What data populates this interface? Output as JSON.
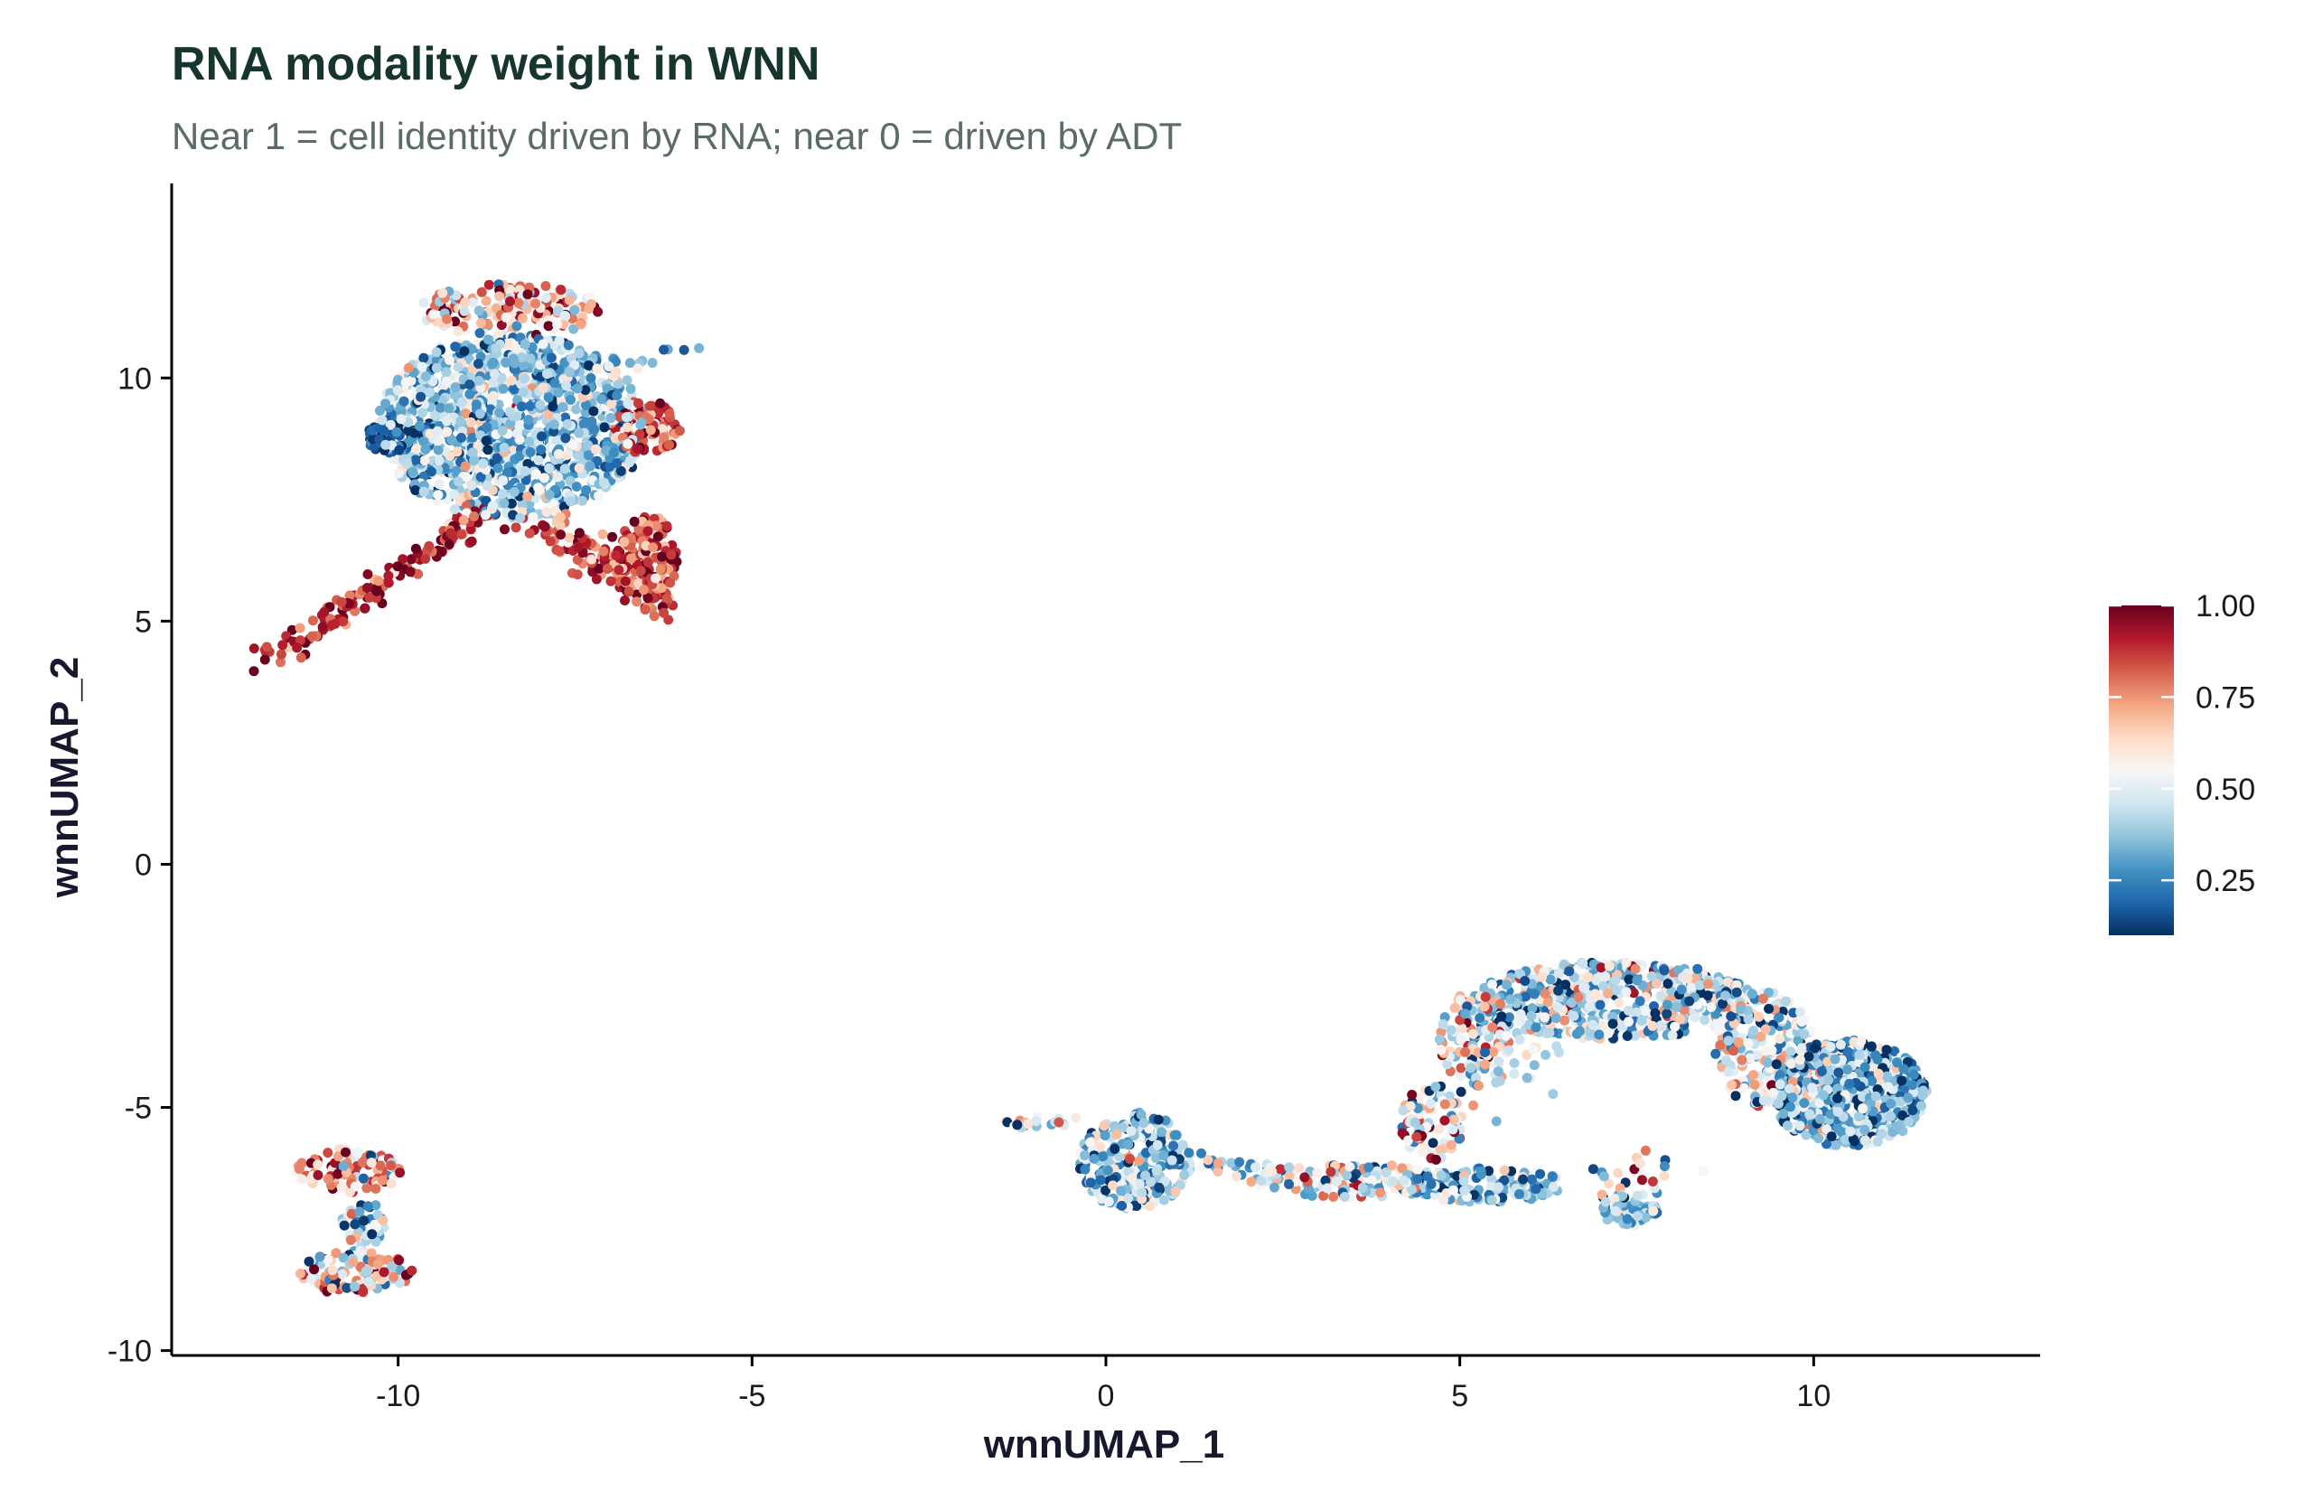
{
  "chart_data": {
    "type": "scatter",
    "title": "RNA modality weight in WNN",
    "subtitle": "Near 1 = cell identity driven by RNA; near 0 = driven by ADT",
    "xlabel": "wnnUMAP_1",
    "ylabel": "wnnUMAP_2",
    "xlim": [
      -13.2,
      13.2
    ],
    "ylim": [
      -10.1,
      14.0
    ],
    "x_ticks": [
      -10,
      -5,
      0,
      5,
      10
    ],
    "x_tick_labels": [
      "-10",
      "-5",
      "0",
      "5",
      "10"
    ],
    "y_ticks": [
      -10,
      -5,
      0,
      5,
      10
    ],
    "y_tick_labels": [
      "-10",
      "-5",
      "0",
      "5",
      "10"
    ],
    "grid": false,
    "colorbar": {
      "range": [
        0.1,
        1.0
      ],
      "ticks": [
        0.25,
        0.5,
        0.75,
        1.0
      ],
      "tick_labels": [
        "0.25",
        "0.50",
        "0.75",
        "1.00"
      ],
      "colors": [
        "#053061",
        "#2166ac",
        "#4393c3",
        "#92c5de",
        "#d1e5f0",
        "#f7f7f7",
        "#fddbc7",
        "#f4a582",
        "#d6604d",
        "#b2182b",
        "#67001f"
      ],
      "placement": "right"
    },
    "clusters": [
      {
        "cx": -8.4,
        "cy": 9.0,
        "rx": 1.9,
        "ry": 1.9,
        "w_mean": 0.38,
        "w_sd": 0.16,
        "n": 1300
      },
      {
        "cx": -10.1,
        "cy": 8.8,
        "rx": 0.35,
        "ry": 0.35,
        "w_mean": 0.18,
        "w_sd": 0.06,
        "n": 70
      },
      {
        "cx": -6.5,
        "cy": 9.0,
        "rx": 0.5,
        "ry": 0.55,
        "w_mean": 0.85,
        "w_sd": 0.12,
        "n": 110
      },
      {
        "cx": -6.5,
        "cy": 6.3,
        "rx": 0.45,
        "ry": 0.9,
        "w_mean": 0.85,
        "w_sd": 0.12,
        "n": 150
      },
      {
        "cx": -8.4,
        "cy": 11.4,
        "rx": 1.3,
        "ry": 0.55,
        "w_mean": 0.7,
        "w_sd": 0.2,
        "n": 170
      },
      {
        "cx": -10.7,
        "cy": -6.3,
        "rx": 0.75,
        "ry": 0.45,
        "w_mean": 0.7,
        "w_sd": 0.22,
        "n": 110
      },
      {
        "cx": -10.6,
        "cy": -8.4,
        "rx": 0.8,
        "ry": 0.45,
        "w_mean": 0.6,
        "w_sd": 0.25,
        "n": 110
      },
      {
        "cx": -10.5,
        "cy": -7.4,
        "rx": 0.3,
        "ry": 0.5,
        "w_mean": 0.45,
        "w_sd": 0.2,
        "n": 40
      },
      {
        "cx": 0.4,
        "cy": -6.1,
        "rx": 0.8,
        "ry": 1.0,
        "w_mean": 0.38,
        "w_sd": 0.16,
        "n": 300
      },
      {
        "cx": 3.4,
        "cy": -6.5,
        "rx": 1.4,
        "ry": 0.35,
        "w_mean": 0.5,
        "w_sd": 0.22,
        "n": 150
      },
      {
        "cx": 5.3,
        "cy": -6.6,
        "rx": 1.2,
        "ry": 0.35,
        "w_mean": 0.35,
        "w_sd": 0.16,
        "n": 150
      },
      {
        "cx": 7.4,
        "cy": -7.1,
        "rx": 0.4,
        "ry": 0.35,
        "w_mean": 0.35,
        "w_sd": 0.12,
        "n": 60
      },
      {
        "cx": 7.2,
        "cy": -2.8,
        "rx": 2.0,
        "ry": 0.8,
        "w_mean": 0.42,
        "w_sd": 0.18,
        "n": 550
      },
      {
        "cx": 10.5,
        "cy": -4.7,
        "rx": 1.1,
        "ry": 1.1,
        "w_mean": 0.35,
        "w_sd": 0.16,
        "n": 700
      },
      {
        "cx": 9.3,
        "cy": -3.8,
        "rx": 0.7,
        "ry": 1.2,
        "w_mean": 0.45,
        "w_sd": 0.2,
        "n": 200
      },
      {
        "cx": 5.2,
        "cy": -3.6,
        "rx": 0.5,
        "ry": 1.0,
        "w_mean": 0.55,
        "w_sd": 0.22,
        "n": 120
      },
      {
        "cx": 4.6,
        "cy": -5.3,
        "rx": 0.45,
        "ry": 0.8,
        "w_mean": 0.6,
        "w_sd": 0.25,
        "n": 80
      }
    ],
    "strands": [
      {
        "from": [
          -11.9,
          4.1
        ],
        "to": [
          -8.8,
          7.2
        ],
        "jitter": 0.12,
        "w_mean": 0.9,
        "w_sd": 0.1,
        "n": 150
      },
      {
        "from": [
          -8.0,
          7.0
        ],
        "to": [
          -6.1,
          5.3
        ],
        "jitter": 0.2,
        "w_mean": 0.85,
        "w_sd": 0.12,
        "n": 120
      },
      {
        "from": [
          -8.0,
          10.2
        ],
        "to": [
          -5.9,
          10.5
        ],
        "jitter": 0.08,
        "w_mean": 0.35,
        "w_sd": 0.12,
        "n": 25
      },
      {
        "from": [
          -1.6,
          -5.3
        ],
        "to": [
          -0.4,
          -5.3
        ],
        "jitter": 0.08,
        "w_mean": 0.5,
        "w_sd": 0.2,
        "n": 20
      },
      {
        "from": [
          1.2,
          -6.1
        ],
        "to": [
          2.3,
          -6.3
        ],
        "jitter": 0.1,
        "w_mean": 0.45,
        "w_sd": 0.2,
        "n": 25
      },
      {
        "from": [
          5.2,
          -4.8
        ],
        "to": [
          6.3,
          -3.3
        ],
        "jitter": 0.3,
        "w_mean": 0.45,
        "w_sd": 0.2,
        "n": 40
      },
      {
        "from": [
          6.8,
          -6.8
        ],
        "to": [
          8.0,
          -6.3
        ],
        "jitter": 0.25,
        "w_mean": 0.5,
        "w_sd": 0.25,
        "n": 25
      }
    ]
  }
}
